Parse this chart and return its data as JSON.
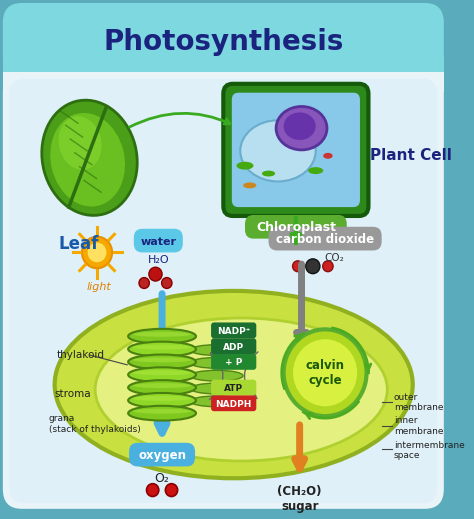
{
  "title": "Photosynthesis",
  "title_color": "#1a237e",
  "header_bg": "#7dd8e0",
  "body_bg": "#cce8f0",
  "border_color": "#5aabbb",
  "border_inner": "#e8f4f8",
  "leaf_label": "Leaf",
  "plant_cell_label": "Plant Cell",
  "chloroplast_label": "Chloroplast",
  "water_label": "water",
  "water_formula": "H₂O",
  "light_label": "light",
  "co2_label": "carbon dioxide",
  "co2_formula": "CO₂",
  "oxygen_label": "oxygen",
  "oxygen_formula": "O₂",
  "sugar_label": "(CH₂O)\nsugar",
  "thylakoid_label": "thylakoid",
  "stroma_label": "stroma",
  "grana_label": "grana\n(stack of thylakoids)",
  "calvin_label": "calvin\ncycle",
  "nadp_label": "NADP⁺",
  "adp_label": "ADP",
  "p_label": "+ P",
  "atp_label": "ATP",
  "nadph_label": "NADPH",
  "outer_membrane_label": "outer\nmembrane",
  "inner_membrane_label": "inner\nmembrane",
  "intermembrane_label": "intermembrane\nspace",
  "blue_arrow": "#4ab0e0",
  "gray_arrow": "#888888",
  "orange_arrow": "#e08020",
  "water_bg": "#7dd8f0",
  "co2_bg": "#999999",
  "nadp_bg": "#1a6e30",
  "atp_bg": "#a8d832",
  "nadph_bg": "#d03030",
  "chloro_pill_bg": "#5aad2e"
}
